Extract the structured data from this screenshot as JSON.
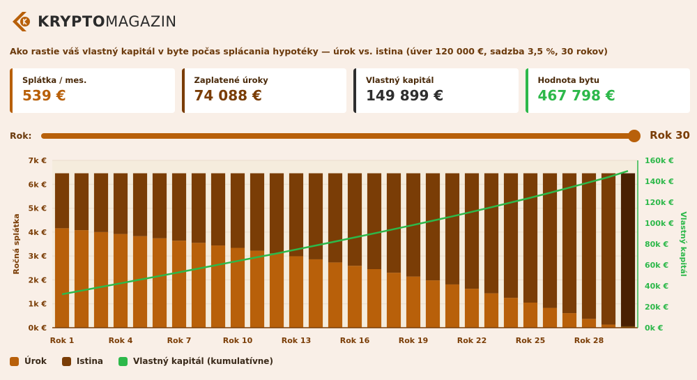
{
  "brand": {
    "bold": "KRYPTO",
    "light": "MAGAZIN",
    "icon": "chevron-coin-logo-icon",
    "color": "#b8600a"
  },
  "headline": "Ako rastie váš vlastný kapitál v byte počas splácania hypotéky — úrok vs. istina (úver 120 000 €, sadzba 3,5 %, 30 rokov)",
  "cards": [
    {
      "label": "Splátka / mes.",
      "value": "539 €"
    },
    {
      "label": "Zaplatené úroky",
      "value": "74 088 €"
    },
    {
      "label": "Vlastný kapitál",
      "value": "149 899 €"
    },
    {
      "label": "Hodnota bytu",
      "value": "467 798 €"
    }
  ],
  "slider": {
    "label": "Rok:",
    "value_label": "Rok 30",
    "value": 30,
    "min": 1,
    "max": 30
  },
  "legend": [
    {
      "label": "Úrok",
      "color": "#b8600a"
    },
    {
      "label": "Istina",
      "color": "#7a3d06"
    },
    {
      "label": "Vlastný kapitál (kumulatívne)",
      "color": "#2db84a"
    }
  ],
  "chart_data": {
    "type": "bar",
    "stacked": true,
    "categories": [
      "Rok 1",
      "Rok 2",
      "Rok 3",
      "Rok 4",
      "Rok 5",
      "Rok 6",
      "Rok 7",
      "Rok 8",
      "Rok 9",
      "Rok 10",
      "Rok 11",
      "Rok 12",
      "Rok 13",
      "Rok 14",
      "Rok 15",
      "Rok 16",
      "Rok 17",
      "Rok 18",
      "Rok 19",
      "Rok 20",
      "Rok 21",
      "Rok 22",
      "Rok 23",
      "Rok 24",
      "Rok 25",
      "Rok 26",
      "Rok 27",
      "Rok 28",
      "Rok 29",
      "Rok 30"
    ],
    "x_tick_labels": [
      "Rok 1",
      "Rok 4",
      "Rok 7",
      "Rok 10",
      "Rok 13",
      "Rok 16",
      "Rok 19",
      "Rok 22",
      "Rok 25",
      "Rok 28"
    ],
    "series": [
      {
        "name": "Úrok",
        "axis": "left",
        "values": [
          4160,
          4080,
          4000,
          3920,
          3830,
          3740,
          3640,
          3550,
          3440,
          3340,
          3220,
          3110,
          2990,
          2860,
          2730,
          2590,
          2450,
          2300,
          2140,
          1980,
          1810,
          1630,
          1440,
          1250,
          1050,
          830,
          610,
          370,
          130,
          60
        ]
      },
      {
        "name": "Istina",
        "axis": "left",
        "values": [
          2300,
          2380,
          2460,
          2540,
          2630,
          2720,
          2820,
          2910,
          3020,
          3120,
          3240,
          3350,
          3470,
          3600,
          3730,
          3870,
          4010,
          4160,
          4320,
          4480,
          4650,
          4830,
          5020,
          5210,
          5410,
          5630,
          5850,
          6090,
          6330,
          6400
        ]
      },
      {
        "name": "Vlastný kapitál (kumulatívne)",
        "axis": "right",
        "type": "line",
        "values": [
          32000,
          35500,
          39000,
          42500,
          46000,
          49500,
          53000,
          56600,
          60200,
          63800,
          67400,
          71000,
          74800,
          78600,
          82400,
          86300,
          90200,
          94200,
          98200,
          102300,
          106500,
          110800,
          115200,
          119700,
          124300,
          129000,
          133900,
          138900,
          144000,
          149899
        ]
      }
    ],
    "highlight_index": 29,
    "highlight_colors": {
      "urok": "#7a4a0a",
      "istina": "#4a2002"
    },
    "ylabel": "Ročná splátka",
    "y2label": "Vlastný kapitál",
    "ylim": [
      0,
      7000
    ],
    "y2lim": [
      0,
      160000
    ],
    "yticks": [
      0,
      1000,
      2000,
      3000,
      4000,
      5000,
      6000,
      7000
    ],
    "ytick_labels": [
      "0k €",
      "1k €",
      "2k €",
      "3k €",
      "4k €",
      "5k €",
      "6k €",
      "7k €"
    ],
    "y2ticks": [
      0,
      20000,
      40000,
      60000,
      80000,
      100000,
      120000,
      140000,
      160000
    ],
    "y2tick_labels": [
      "0k €",
      "20k €",
      "40k €",
      "60k €",
      "80k €",
      "100k €",
      "120k €",
      "140k €",
      "160k €"
    ],
    "grid": true,
    "colors": {
      "urok": "#b8600a",
      "istina": "#7a3d06",
      "equity": "#2db84a",
      "grid": "#eaddcc",
      "axis": "#7a3d06"
    }
  }
}
